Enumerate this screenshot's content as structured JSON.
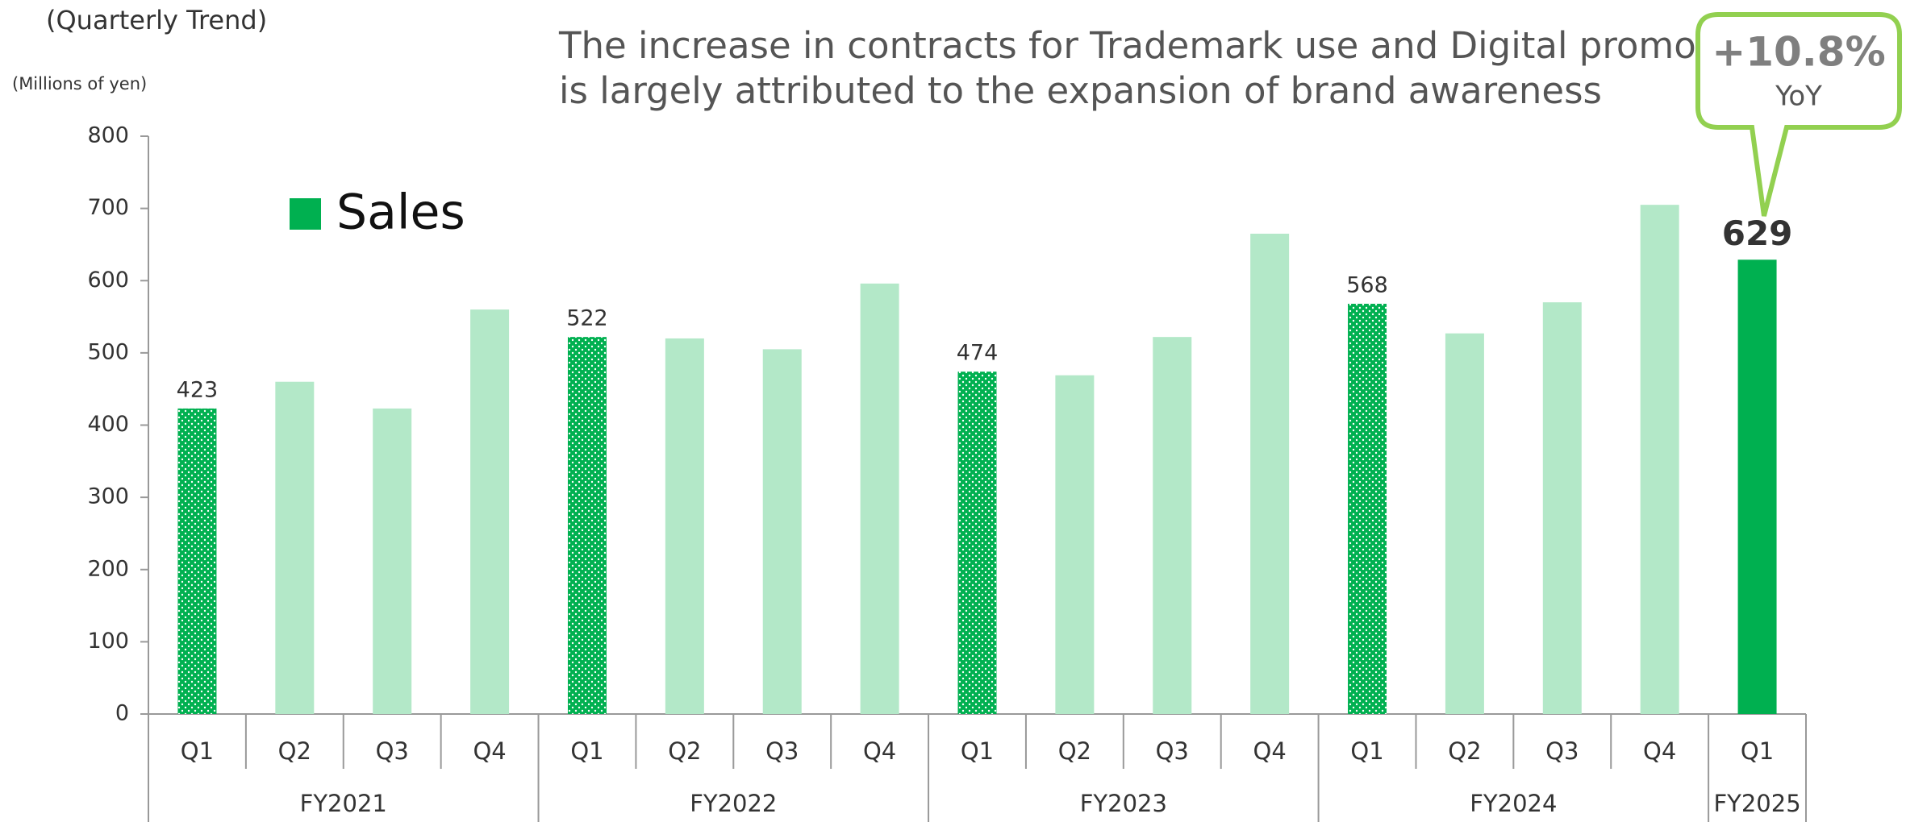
{
  "chart_data": {
    "type": "bar",
    "subtitle": "(Quarterly Trend)",
    "y_label": "(Millions of yen)",
    "title": [
      "The increase in contracts for Trademark use and Digital promotion",
      "is largely attributed to the expansion of brand awareness"
    ],
    "legend": "Sales",
    "callout": {
      "value": "+10.8%",
      "label": "YoY"
    },
    "categories": [
      "Q1",
      "Q2",
      "Q3",
      "Q4",
      "Q1",
      "Q2",
      "Q3",
      "Q4",
      "Q1",
      "Q2",
      "Q3",
      "Q4",
      "Q1",
      "Q2",
      "Q3",
      "Q4",
      "Q1"
    ],
    "groups": [
      {
        "name": "FY2021",
        "size": 4
      },
      {
        "name": "FY2022",
        "size": 4
      },
      {
        "name": "FY2023",
        "size": 4
      },
      {
        "name": "FY2024",
        "size": 4
      },
      {
        "name": "FY2025",
        "size": 1
      }
    ],
    "values": [
      423,
      460,
      423,
      560,
      522,
      520,
      505,
      596,
      474,
      469,
      522,
      665,
      568,
      527,
      570,
      705,
      629
    ],
    "value_labels": [
      "423",
      null,
      null,
      null,
      "522",
      null,
      null,
      null,
      "474",
      null,
      null,
      null,
      "568",
      null,
      null,
      null,
      "629"
    ],
    "colors": [
      "#00b050",
      "#b3e8c8",
      "#b3e8c8",
      "#b3e8c8",
      "#00b050",
      "#b3e8c8",
      "#b3e8c8",
      "#b3e8c8",
      "#00b050",
      "#b3e8c8",
      "#b3e8c8",
      "#b3e8c8",
      "#00b050",
      "#b3e8c8",
      "#b3e8c8",
      "#b3e8c8",
      "#00b050"
    ],
    "dotted": [
      true,
      false,
      false,
      false,
      true,
      false,
      false,
      false,
      true,
      false,
      false,
      false,
      true,
      false,
      false,
      false,
      false
    ],
    "color": "#00b050",
    "ylim": [
      0,
      800
    ],
    "yticks": [
      0,
      100,
      200,
      300,
      400,
      500,
      600,
      700,
      800
    ]
  }
}
